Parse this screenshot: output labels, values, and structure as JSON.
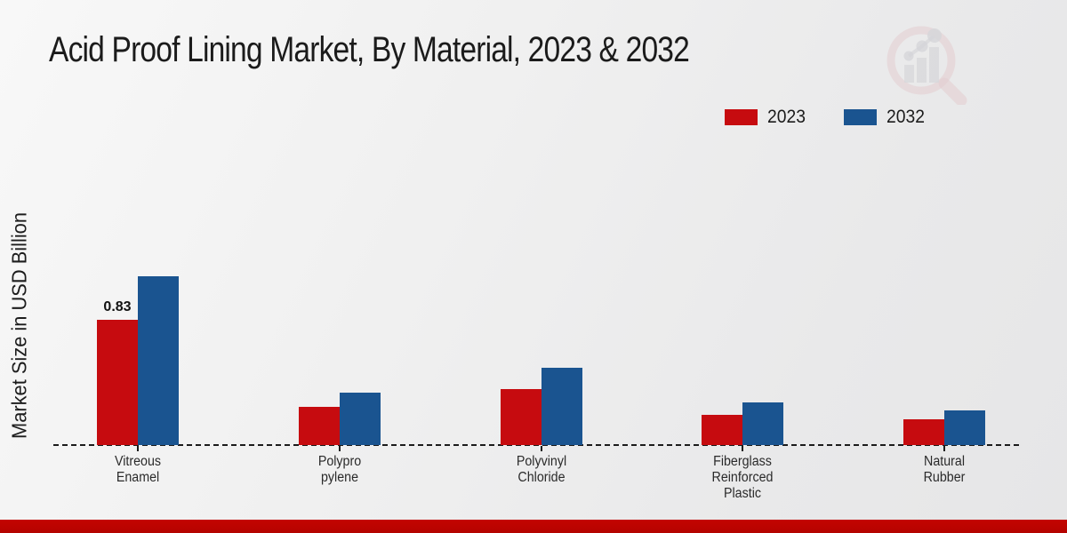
{
  "page": {
    "title": "Acid Proof Lining Market, By Material, 2023 & 2032"
  },
  "chart_data": {
    "type": "bar",
    "title": "Acid Proof Lining Market, By Material, 2023 & 2032",
    "xlabel": "",
    "ylabel": "Market Size in USD Billion",
    "unit": "USD Billion",
    "grid": false,
    "legend_position": "top-right",
    "baseline_value": 0,
    "ylim": [
      0,
      1.2
    ],
    "categories": [
      "Vitreous\nEnamel",
      "Polypro\npylene",
      "Polyvinyl\nChloride",
      "Fiberglass\nReinforced\nPlastic",
      "Natural\nRubber"
    ],
    "series": [
      {
        "name": "2023",
        "color": "#c60b0f",
        "values": [
          0.83,
          0.25,
          0.37,
          0.2,
          0.17
        ]
      },
      {
        "name": "2032",
        "color": "#1a5490",
        "values": [
          1.12,
          0.35,
          0.51,
          0.28,
          0.23
        ]
      }
    ],
    "annotations": [
      {
        "series": "2023",
        "category_index": 0,
        "text": "0.83"
      }
    ]
  },
  "branding": {
    "watermark_icon": "magnifier-bar-chart-logo",
    "accent_color": "#bb0300"
  }
}
